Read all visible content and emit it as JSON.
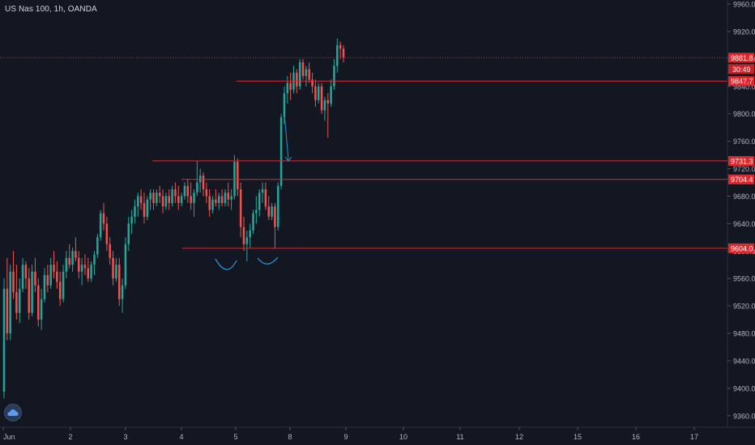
{
  "symbol_title": "US Nas 100, 1h, OANDA",
  "colors": {
    "background": "#131722",
    "up": "#26a69a",
    "down": "#ef5350",
    "level_line": "#e0282c",
    "price_tag": "#e0282c",
    "annotation": "#2e8fd6",
    "axis_text": "#b2b5be",
    "axis_line": "#2a2e39"
  },
  "chart_data": {
    "type": "candlestick",
    "title": "US Nas 100, 1h, OANDA",
    "ylim": [
      9340,
      9970
    ],
    "y_ticks": [
      "9360.0",
      "9400.0",
      "9440.0",
      "9480.0",
      "9520.0",
      "9560.0",
      "9600.0",
      "9640.0",
      "9680.0",
      "9720.0",
      "9760.0",
      "9800.0",
      "9840.0",
      "9880.0",
      "9920.0",
      "9960.0"
    ],
    "x_ticks": [
      "Jun",
      "2",
      "3",
      "4",
      "5",
      "8",
      "9",
      "10",
      "11",
      "12",
      "15",
      "16",
      "17"
    ],
    "price_levels": [
      {
        "label": "9881.8",
        "value": 9881.8,
        "style": "dotted"
      },
      {
        "label": "9847.7",
        "value": 9847.7,
        "style": "solid"
      },
      {
        "label": "9731.3",
        "value": 9731.3,
        "style": "solid"
      },
      {
        "label": "9704.4",
        "value": 9704.4,
        "style": "solid"
      },
      {
        "label": "9604.0",
        "value": 9604.0,
        "style": "solid"
      }
    ],
    "countdown_label": "30:49",
    "candles": [
      [
        9395,
        9560,
        9385,
        9545
      ],
      [
        9545,
        9590,
        9470,
        9480
      ],
      [
        9480,
        9580,
        9470,
        9570
      ],
      [
        9570,
        9600,
        9530,
        9540
      ],
      [
        9540,
        9580,
        9500,
        9510
      ],
      [
        9510,
        9560,
        9495,
        9545
      ],
      [
        9545,
        9590,
        9540,
        9580
      ],
      [
        9580,
        9585,
        9545,
        9560
      ],
      [
        9560,
        9575,
        9500,
        9510
      ],
      [
        9510,
        9580,
        9505,
        9570
      ],
      [
        9570,
        9590,
        9540,
        9550
      ],
      [
        9550,
        9560,
        9490,
        9500
      ],
      [
        9500,
        9545,
        9485,
        9530
      ],
      [
        9530,
        9575,
        9525,
        9565
      ],
      [
        9565,
        9580,
        9540,
        9550
      ],
      [
        9550,
        9590,
        9545,
        9580
      ],
      [
        9580,
        9600,
        9560,
        9570
      ],
      [
        9570,
        9585,
        9545,
        9555
      ],
      [
        9555,
        9570,
        9520,
        9530
      ],
      [
        9530,
        9580,
        9525,
        9570
      ],
      [
        9570,
        9600,
        9560,
        9590
      ],
      [
        9590,
        9610,
        9575,
        9580
      ],
      [
        9580,
        9605,
        9570,
        9600
      ],
      [
        9600,
        9620,
        9585,
        9590
      ],
      [
        9590,
        9600,
        9560,
        9570
      ],
      [
        9570,
        9590,
        9550,
        9580
      ],
      [
        9580,
        9595,
        9565,
        9575
      ],
      [
        9575,
        9590,
        9555,
        9560
      ],
      [
        9560,
        9585,
        9555,
        9580
      ],
      [
        9580,
        9600,
        9565,
        9595
      ],
      [
        9595,
        9625,
        9590,
        9620
      ],
      [
        9620,
        9660,
        9615,
        9655
      ],
      [
        9655,
        9670,
        9630,
        9640
      ],
      [
        9640,
        9650,
        9600,
        9610
      ],
      [
        9610,
        9620,
        9580,
        9590
      ],
      [
        9590,
        9600,
        9550,
        9560
      ],
      [
        9560,
        9590,
        9555,
        9580
      ],
      [
        9580,
        9590,
        9520,
        9530
      ],
      [
        9530,
        9560,
        9510,
        9550
      ],
      [
        9550,
        9620,
        9545,
        9610
      ],
      [
        9610,
        9650,
        9600,
        9640
      ],
      [
        9640,
        9660,
        9625,
        9650
      ],
      [
        9650,
        9675,
        9640,
        9665
      ],
      [
        9665,
        9685,
        9650,
        9680
      ],
      [
        9680,
        9690,
        9660,
        9670
      ],
      [
        9670,
        9685,
        9640,
        9650
      ],
      [
        9650,
        9680,
        9645,
        9675
      ],
      [
        9675,
        9690,
        9660,
        9685
      ],
      [
        9685,
        9690,
        9660,
        9670
      ],
      [
        9670,
        9690,
        9665,
        9685
      ],
      [
        9685,
        9695,
        9670,
        9680
      ],
      [
        9680,
        9690,
        9655,
        9665
      ],
      [
        9665,
        9685,
        9660,
        9680
      ],
      [
        9680,
        9690,
        9660,
        9670
      ],
      [
        9670,
        9695,
        9665,
        9690
      ],
      [
        9690,
        9700,
        9670,
        9680
      ],
      [
        9680,
        9695,
        9660,
        9670
      ],
      [
        9670,
        9685,
        9665,
        9680
      ],
      [
        9680,
        9700,
        9675,
        9695
      ],
      [
        9695,
        9705,
        9670,
        9680
      ],
      [
        9680,
        9700,
        9660,
        9670
      ],
      [
        9670,
        9690,
        9650,
        9685
      ],
      [
        9685,
        9731,
        9680,
        9700
      ],
      [
        9700,
        9720,
        9685,
        9710
      ],
      [
        9710,
        9715,
        9680,
        9690
      ],
      [
        9690,
        9700,
        9670,
        9680
      ],
      [
        9680,
        9690,
        9650,
        9660
      ],
      [
        9660,
        9680,
        9655,
        9675
      ],
      [
        9675,
        9690,
        9665,
        9670
      ],
      [
        9670,
        9685,
        9660,
        9680
      ],
      [
        9680,
        9690,
        9665,
        9670
      ],
      [
        9670,
        9690,
        9665,
        9685
      ],
      [
        9685,
        9700,
        9665,
        9675
      ],
      [
        9675,
        9690,
        9660,
        9680
      ],
      [
        9680,
        9740,
        9675,
        9730
      ],
      [
        9730,
        9735,
        9680,
        9690
      ],
      [
        9690,
        9700,
        9620,
        9635
      ],
      [
        9635,
        9650,
        9600,
        9610
      ],
      [
        9610,
        9630,
        9585,
        9620
      ],
      [
        9620,
        9640,
        9605,
        9630
      ],
      [
        9630,
        9660,
        9625,
        9655
      ],
      [
        9655,
        9680,
        9640,
        9660
      ],
      [
        9660,
        9690,
        9650,
        9685
      ],
      [
        9685,
        9700,
        9670,
        9690
      ],
      [
        9690,
        9700,
        9660,
        9665
      ],
      [
        9665,
        9680,
        9645,
        9650
      ],
      [
        9650,
        9670,
        9645,
        9665
      ],
      [
        9665,
        9670,
        9604,
        9635
      ],
      [
        9635,
        9700,
        9630,
        9695
      ],
      [
        9695,
        9800,
        9690,
        9795
      ],
      [
        9795,
        9840,
        9785,
        9830
      ],
      [
        9830,
        9855,
        9815,
        9845
      ],
      [
        9845,
        9860,
        9820,
        9835
      ],
      [
        9835,
        9870,
        9830,
        9860
      ],
      [
        9860,
        9865,
        9830,
        9840
      ],
      [
        9840,
        9880,
        9835,
        9875
      ],
      [
        9875,
        9880,
        9850,
        9855
      ],
      [
        9855,
        9870,
        9840,
        9865
      ],
      [
        9865,
        9875,
        9845,
        9850
      ],
      [
        9850,
        9860,
        9830,
        9840
      ],
      [
        9840,
        9850,
        9810,
        9820
      ],
      [
        9820,
        9845,
        9815,
        9840
      ],
      [
        9840,
        9845,
        9800,
        9805
      ],
      [
        9805,
        9825,
        9790,
        9820
      ],
      [
        9820,
        9830,
        9765,
        9815
      ],
      [
        9815,
        9850,
        9810,
        9840
      ],
      [
        9840,
        9880,
        9835,
        9870
      ],
      [
        9870,
        9910,
        9860,
        9900
      ],
      [
        9900,
        9905,
        9880,
        9895
      ],
      [
        9895,
        9900,
        9875,
        9882
      ]
    ]
  }
}
